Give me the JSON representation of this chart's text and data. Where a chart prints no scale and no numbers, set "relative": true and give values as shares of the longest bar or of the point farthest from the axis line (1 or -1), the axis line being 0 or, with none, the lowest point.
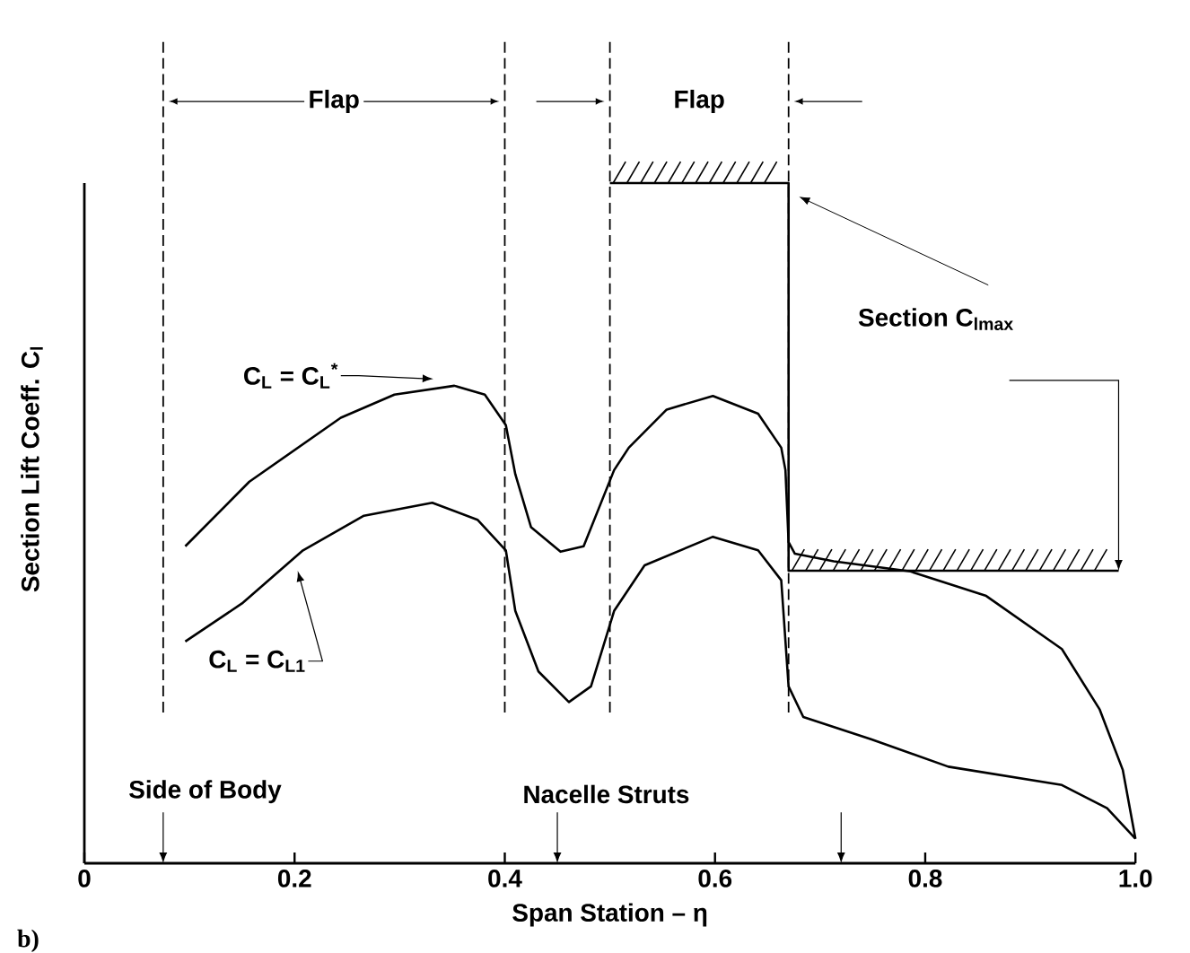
{
  "chart_data": {
    "type": "line",
    "relative": true,
    "xlabel": "Span Station – η",
    "ylabel": "Section Lift Coeff.  C$_{l}$",
    "xlim": [
      0,
      1
    ],
    "xticks": [
      0,
      0.2,
      0.4,
      0.6,
      0.8,
      {
        "value": 1,
        "label": "1.0"
      }
    ],
    "series": [
      {
        "name": "C$_{L}$ = C$_{L}$$^{*}$",
        "color": "#000000",
        "x": [
          0.096,
          0.157,
          0.244,
          0.295,
          0.352,
          0.381,
          0.401,
          0.41,
          0.425,
          0.453,
          0.475,
          0.504,
          0.518,
          0.554,
          0.598,
          0.641,
          0.663,
          0.667,
          0.67,
          0.676,
          0.713,
          0.786,
          0.858,
          0.93,
          0.966,
          0.988,
          1.0
        ],
        "values": [
          0.466,
          0.561,
          0.655,
          0.689,
          0.702,
          0.689,
          0.644,
          0.572,
          0.494,
          0.458,
          0.466,
          0.578,
          0.611,
          0.667,
          0.687,
          0.661,
          0.611,
          0.578,
          0.472,
          0.455,
          0.444,
          0.429,
          0.393,
          0.315,
          0.226,
          0.137,
          0.036
        ]
      },
      {
        "name": "C$_{L}$ = C$_{L1}$",
        "color": "#000000",
        "x": [
          0.096,
          0.15,
          0.208,
          0.266,
          0.331,
          0.374,
          0.401,
          0.41,
          0.432,
          0.461,
          0.482,
          0.504,
          0.533,
          0.598,
          0.641,
          0.663,
          0.67,
          0.684,
          0.749,
          0.822,
          0.93,
          0.973,
          1.0
        ],
        "values": [
          0.326,
          0.382,
          0.46,
          0.511,
          0.53,
          0.505,
          0.46,
          0.371,
          0.282,
          0.237,
          0.26,
          0.371,
          0.438,
          0.48,
          0.46,
          0.416,
          0.26,
          0.215,
          0.182,
          0.142,
          0.115,
          0.081,
          0.036
        ]
      },
      {
        "name": "Section C$_{lmax}$",
        "color": "#000000",
        "x": [
          0.5,
          0.67,
          0.67,
          0.984
        ],
        "values": [
          1.0,
          1.0,
          0.43,
          0.43
        ]
      }
    ],
    "ref_lines": [
      {
        "axis": "x",
        "value": 0.075,
        "line_style": "dashed"
      },
      {
        "axis": "x",
        "value": 0.4,
        "line_style": "dashed"
      },
      {
        "axis": "x",
        "value": 0.5,
        "line_style": "dashed"
      },
      {
        "axis": "x",
        "value": 0.67,
        "line_style": "dashed"
      }
    ],
    "annotations": [
      "Flap",
      "Flap",
      "Side of Body",
      "Nacelle Struts",
      "b)"
    ]
  }
}
